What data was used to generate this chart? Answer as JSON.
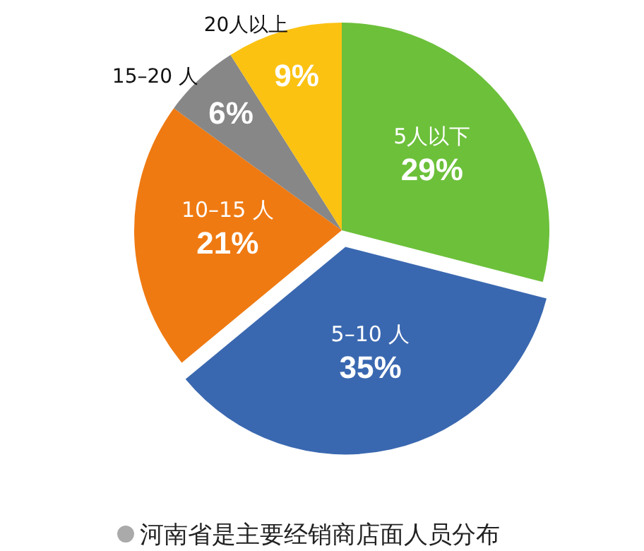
{
  "chart_data": {
    "type": "pie",
    "title": "河南省是主要经销商店面人员分布",
    "categories": [
      "5人以下",
      "5–10 人",
      "10–15 人",
      "15–20 人",
      "20人以上"
    ],
    "values": [
      29,
      35,
      21,
      6,
      9
    ],
    "colors": [
      "#6cc03a",
      "#3a68b0",
      "#ef7a12",
      "#878787",
      "#fcc212"
    ],
    "value_labels": [
      "29%",
      "35%",
      "21%",
      "6%",
      "9%"
    ]
  }
}
